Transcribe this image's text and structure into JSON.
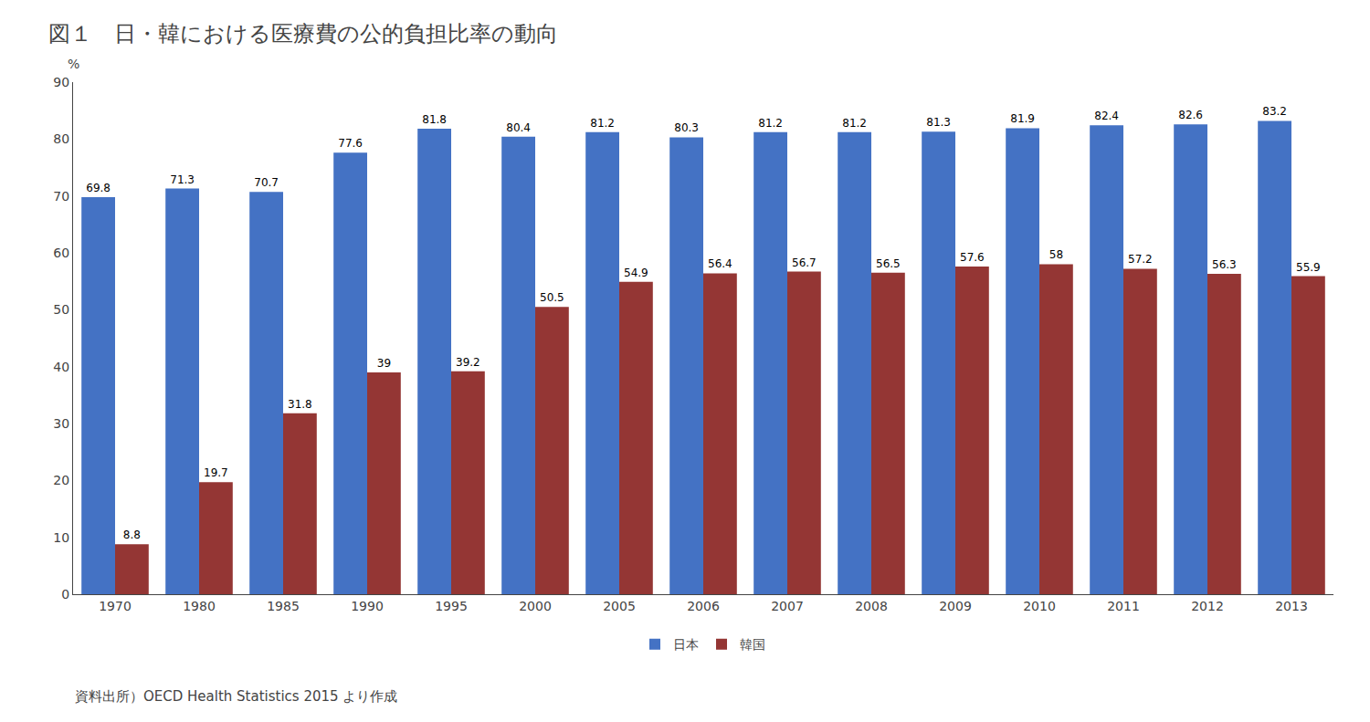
{
  "chart_data": {
    "type": "bar",
    "title": "図１　日・韓における医療費の公的負担比率の動向",
    "ylabel": "%",
    "categories": [
      "1970",
      "1980",
      "1985",
      "1990",
      "1995",
      "2000",
      "2005",
      "2006",
      "2007",
      "2008",
      "2009",
      "2010",
      "2011",
      "2012",
      "2013"
    ],
    "series": [
      {
        "name": "日本",
        "color": "#4472C4",
        "values": [
          69.8,
          71.3,
          70.7,
          77.6,
          81.8,
          80.4,
          81.2,
          80.3,
          81.2,
          81.2,
          81.3,
          81.9,
          82.4,
          82.6,
          83.2
        ]
      },
      {
        "name": "韓国",
        "color": "#943634",
        "values": [
          8.8,
          19.7,
          31.8,
          39.0,
          39.2,
          50.5,
          54.9,
          56.4,
          56.7,
          56.5,
          57.6,
          58.0,
          57.2,
          56.3,
          55.9
        ]
      }
    ],
    "ylim": [
      0,
      90
    ],
    "yticks": [
      0,
      10,
      20,
      30,
      40,
      50,
      60,
      70,
      80,
      90
    ],
    "grid": false,
    "legend": "bottom",
    "data_labels": true,
    "annotations": [
      "資料出所）OECD Health Statistics 2015 より作成"
    ]
  }
}
